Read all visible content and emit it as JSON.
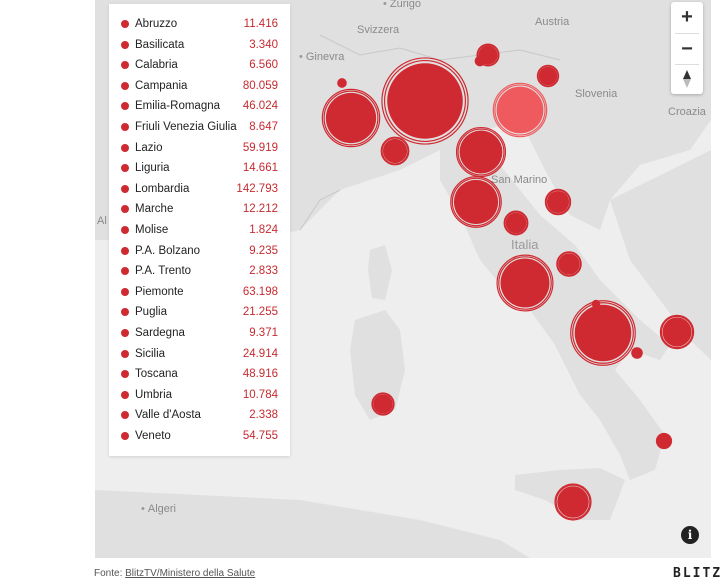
{
  "map": {
    "labels": {
      "zurigo": "Zurigo",
      "svizzera": "Svizzera",
      "austria": "Austria",
      "ginevra": "Ginevra",
      "slovenia": "Slovenia",
      "croazia": "Croazia",
      "san_marino": "San Marino",
      "italia": "Italia",
      "algeri": "Algeri",
      "al_fragment": "Al"
    },
    "colors": {
      "sea": "#eeeeee",
      "land": "#e0e0e0",
      "bubble": "#cf2a31",
      "highlight": "#ef5a5e"
    }
  },
  "legend": [
    {
      "name": "Abruzzo",
      "value": "11.416"
    },
    {
      "name": "Basilicata",
      "value": "3.340"
    },
    {
      "name": "Calabria",
      "value": "6.560"
    },
    {
      "name": "Campania",
      "value": "80.059"
    },
    {
      "name": "Emilia-Romagna",
      "value": "46.024"
    },
    {
      "name": "Friuli Venezia Giulia",
      "value": "8.647"
    },
    {
      "name": "Lazio",
      "value": "59.919"
    },
    {
      "name": "Liguria",
      "value": "14.661"
    },
    {
      "name": "Lombardia",
      "value": "142.793"
    },
    {
      "name": "Marche",
      "value": "12.212"
    },
    {
      "name": "Molise",
      "value": "1.824"
    },
    {
      "name": "P.A. Bolzano",
      "value": "9.235"
    },
    {
      "name": "P.A. Trento",
      "value": "2.833"
    },
    {
      "name": "Piemonte",
      "value": "63.198"
    },
    {
      "name": "Puglia",
      "value": "21.255"
    },
    {
      "name": "Sardegna",
      "value": "9.371"
    },
    {
      "name": "Sicilia",
      "value": "24.914"
    },
    {
      "name": "Toscana",
      "value": "48.916"
    },
    {
      "name": "Umbria",
      "value": "10.784"
    },
    {
      "name": "Valle d'Aosta",
      "value": "2.338"
    },
    {
      "name": "Veneto",
      "value": "54.755"
    }
  ],
  "controls": {
    "zoom_in": "+",
    "zoom_out": "−",
    "info": "i"
  },
  "footer": {
    "source_prefix": "Fonte: ",
    "source_link": "BlitzTV/Ministero della Salute",
    "brand": "BLITZ"
  }
}
